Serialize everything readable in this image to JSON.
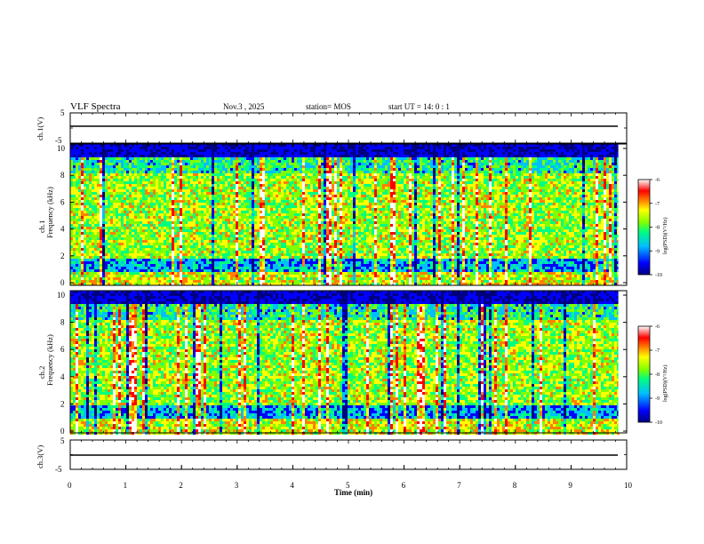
{
  "header": {
    "title": "VLF Spectra",
    "date": "Nov.3 , 2025",
    "station": "station= MOS",
    "start": "start UT = 14: 0 : 1"
  },
  "chart_data": {
    "type": "heatmap",
    "x": {
      "label": "Time (min)",
      "range": [
        0,
        10
      ],
      "ticks": [
        "0",
        "1",
        "2",
        "3",
        "4",
        "5",
        "6",
        "7",
        "8",
        "9",
        "10"
      ],
      "data_extent_min": 9.85
    },
    "panels": [
      {
        "id": "ch1-voltage",
        "type": "line",
        "ylabel": "ch.1(V)",
        "ylim": [
          -5,
          5
        ],
        "yticks": [
          "5",
          "-5"
        ],
        "baseline": 0
      },
      {
        "id": "ch1-spectrogram",
        "type": "heatmap",
        "ylabel_top": "ch.1",
        "ylabel": "Frequency (kHz)",
        "ylim": [
          0,
          10
        ],
        "yticks": [
          "0",
          "2",
          "4",
          "6",
          "8",
          "10"
        ],
        "colorbar": {
          "label": "log(PSD)(V²/Hz)",
          "range": [
            -10,
            -6
          ],
          "ticks": [
            "-6",
            "-7",
            "-8",
            "-9",
            "-10"
          ]
        }
      },
      {
        "id": "ch2-spectrogram",
        "type": "heatmap",
        "ylabel_top": "ch.2",
        "ylabel": "Frequency (kHz)",
        "ylim": [
          0,
          10
        ],
        "yticks": [
          "0",
          "2",
          "4",
          "6",
          "8",
          "10"
        ],
        "colorbar": {
          "label": "log(PSD)(V²/Hz)",
          "range": [
            -10,
            -6
          ],
          "ticks": [
            "-6",
            "-7",
            "-8",
            "-9",
            "-10"
          ]
        }
      },
      {
        "id": "ch3-voltage",
        "type": "line",
        "ylabel": "ch.3(V)",
        "ylim": [
          -5,
          5
        ],
        "yticks": [
          "5",
          "-5"
        ],
        "baseline": 0
      }
    ],
    "colormap": [
      "#000080",
      "#0000ff",
      "#00bfff",
      "#00ff80",
      "#80ff00",
      "#ffff00",
      "#ff8000",
      "#ff0000",
      "#ffffff"
    ],
    "grid": false
  }
}
